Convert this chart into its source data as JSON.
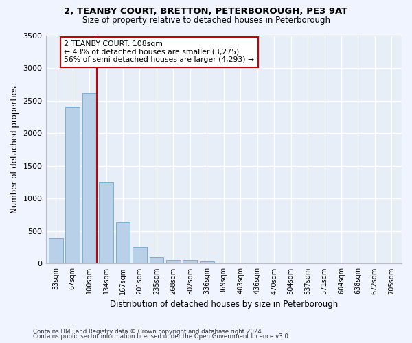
{
  "title1": "2, TEANBY COURT, BRETTON, PETERBOROUGH, PE3 9AT",
  "title2": "Size of property relative to detached houses in Peterborough",
  "xlabel": "Distribution of detached houses by size in Peterborough",
  "ylabel": "Number of detached properties",
  "categories": [
    "33sqm",
    "67sqm",
    "100sqm",
    "134sqm",
    "167sqm",
    "201sqm",
    "235sqm",
    "268sqm",
    "302sqm",
    "336sqm",
    "369sqm",
    "403sqm",
    "436sqm",
    "470sqm",
    "504sqm",
    "537sqm",
    "571sqm",
    "604sqm",
    "638sqm",
    "672sqm",
    "705sqm"
  ],
  "values": [
    390,
    2400,
    2610,
    1240,
    640,
    255,
    95,
    60,
    60,
    40,
    0,
    0,
    0,
    0,
    0,
    0,
    0,
    0,
    0,
    0,
    0
  ],
  "bar_color": "#b8d0e8",
  "bar_edgecolor": "#7aaed4",
  "vline_x": 2.43,
  "vline_color": "#cc0000",
  "annotation_text": "2 TEANBY COURT: 108sqm\n← 43% of detached houses are smaller (3,275)\n56% of semi-detached houses are larger (4,293) →",
  "annotation_box_color": "#ffffff",
  "annotation_box_edgecolor": "#cc0000",
  "ylim": [
    0,
    3500
  ],
  "yticks": [
    0,
    500,
    1000,
    1500,
    2000,
    2500,
    3000,
    3500
  ],
  "background_color": "#e8eef8",
  "grid_color": "#ffffff",
  "footnote1": "Contains HM Land Registry data © Crown copyright and database right 2024.",
  "footnote2": "Contains public sector information licensed under the Open Government Licence v3.0."
}
